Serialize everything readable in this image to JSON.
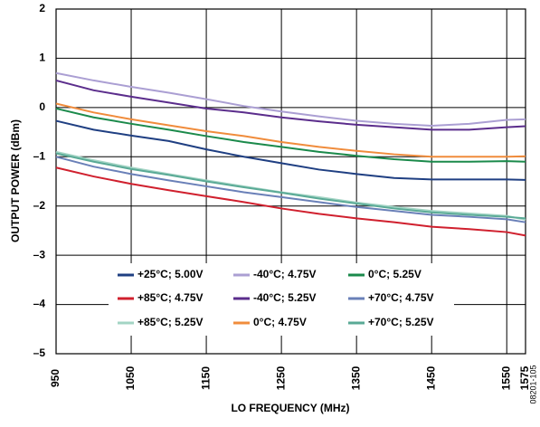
{
  "chart_data": {
    "type": "line",
    "x_label": "LO FREQUENCY (MHz)",
    "y_label": "OUTPUT POWER (dBm)",
    "note": "08201-105",
    "x": [
      950,
      1000,
      1050,
      1100,
      1150,
      1200,
      1250,
      1300,
      1350,
      1400,
      1450,
      1500,
      1550,
      1575
    ],
    "xlim": [
      950,
      1575
    ],
    "xticks": [
      950,
      1050,
      1150,
      1250,
      1350,
      1450,
      1550,
      1575
    ],
    "ylim": [
      -5,
      2
    ],
    "yticks": [
      {
        "value": -5,
        "label": "–5"
      },
      {
        "value": -4,
        "label": "–4"
      },
      {
        "value": -3,
        "label": "–3"
      },
      {
        "value": -2,
        "label": "–2"
      },
      {
        "value": -1,
        "label": "–1"
      },
      0,
      1,
      2
    ],
    "grid": true,
    "legend": "bottom",
    "series": [
      {
        "name": "+25°C; 5.00V",
        "color": "#1f3f82",
        "values": [
          -0.27,
          -0.45,
          -0.57,
          -0.68,
          -0.85,
          -1.0,
          -1.13,
          -1.26,
          -1.35,
          -1.43,
          -1.46,
          -1.46,
          -1.46,
          -1.47
        ]
      },
      {
        "name": "-40°C; 4.75V",
        "color": "#ab9fd3",
        "values": [
          0.7,
          0.55,
          0.42,
          0.3,
          0.17,
          0.03,
          -0.08,
          -0.18,
          -0.27,
          -0.33,
          -0.37,
          -0.33,
          -0.25,
          -0.24
        ]
      },
      {
        "name": "0°C; 5.25V",
        "color": "#1b8a4b",
        "values": [
          -0.02,
          -0.2,
          -0.33,
          -0.45,
          -0.58,
          -0.7,
          -0.8,
          -0.9,
          -0.98,
          -1.05,
          -1.1,
          -1.1,
          -1.09,
          -1.1
        ]
      },
      {
        "name": "+85°C; 4.75V",
        "color": "#d0202e",
        "values": [
          -1.22,
          -1.4,
          -1.55,
          -1.68,
          -1.8,
          -1.92,
          -2.05,
          -2.16,
          -2.25,
          -2.33,
          -2.42,
          -2.47,
          -2.53,
          -2.6
        ]
      },
      {
        "name": "-40°C; 5.25V",
        "color": "#5b2d8c",
        "values": [
          0.55,
          0.35,
          0.22,
          0.1,
          -0.02,
          -0.1,
          -0.2,
          -0.28,
          -0.35,
          -0.4,
          -0.45,
          -0.45,
          -0.4,
          -0.38
        ]
      },
      {
        "name": "+70°C; 4.75V",
        "color": "#6a80b8",
        "values": [
          -1.0,
          -1.2,
          -1.35,
          -1.48,
          -1.6,
          -1.72,
          -1.82,
          -1.92,
          -2.02,
          -2.1,
          -2.18,
          -2.22,
          -2.27,
          -2.33
        ]
      },
      {
        "name": "+85°C; 5.25V",
        "color": "#a3d4c4",
        "values": [
          -0.9,
          -1.07,
          -1.22,
          -1.35,
          -1.48,
          -1.6,
          -1.72,
          -1.82,
          -1.93,
          -2.02,
          -2.1,
          -2.15,
          -2.2,
          -2.28
        ]
      },
      {
        "name": "0°C; 4.75V",
        "color": "#f08c3c",
        "values": [
          0.08,
          -0.1,
          -0.24,
          -0.36,
          -0.48,
          -0.58,
          -0.7,
          -0.8,
          -0.88,
          -0.95,
          -1.0,
          -1.0,
          -1.0,
          -0.99
        ]
      },
      {
        "name": "+70°C; 5.25V",
        "color": "#5aaa96",
        "values": [
          -0.93,
          -1.1,
          -1.25,
          -1.37,
          -1.5,
          -1.62,
          -1.73,
          -1.85,
          -1.95,
          -2.05,
          -2.13,
          -2.18,
          -2.22,
          -2.25
        ]
      }
    ]
  }
}
